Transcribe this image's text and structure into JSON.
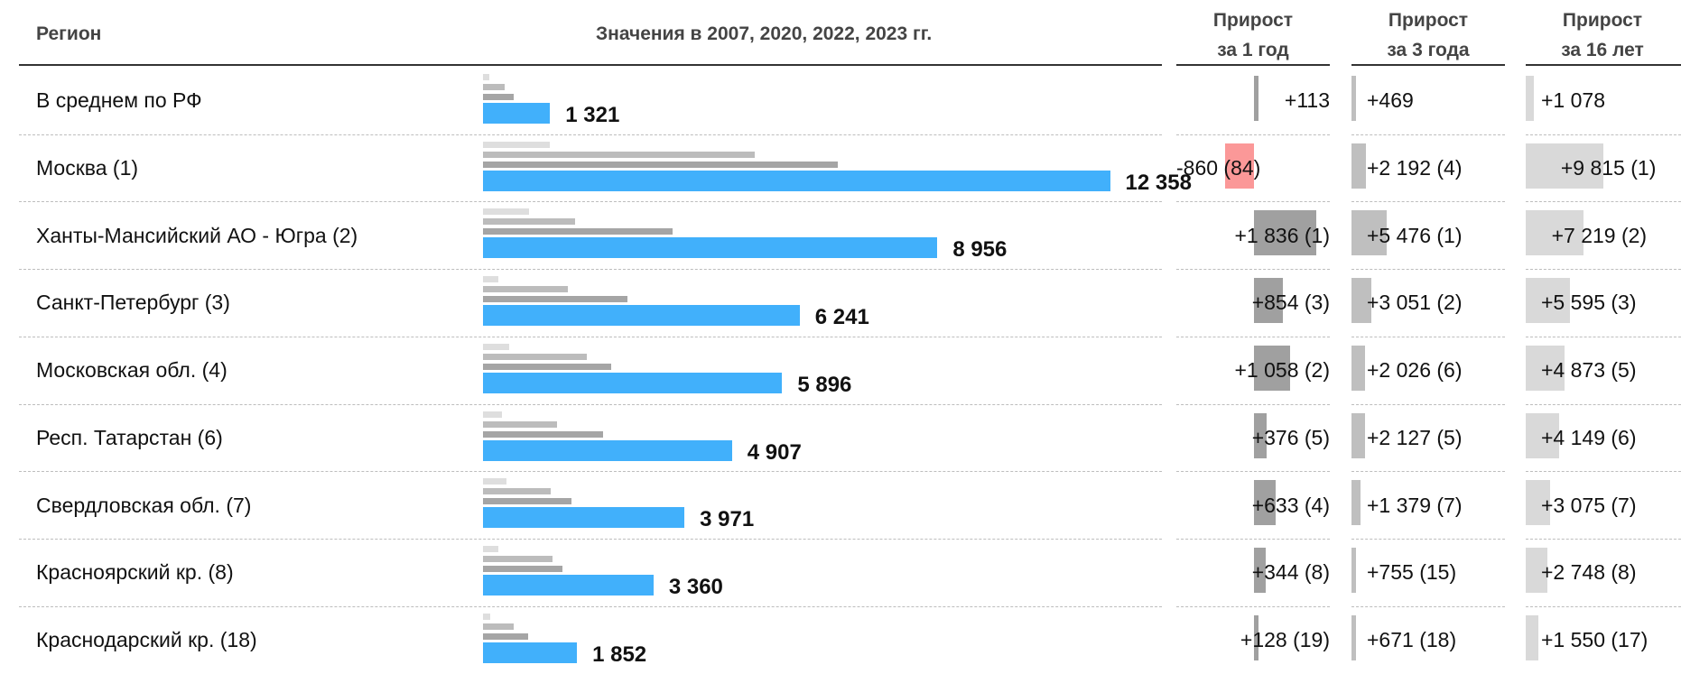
{
  "header": {
    "region": "Регион",
    "values": "Значения в 2007, 2020, 2022, 2023 гг.",
    "growth": [
      {
        "line1": "Прирост",
        "line2": "за 1 год"
      },
      {
        "line1": "Прирост",
        "line2": "за 3 года"
      },
      {
        "line1": "Прирост",
        "line2": "за 16 лет"
      }
    ]
  },
  "colors": {
    "v2007": "#dedede",
    "v2020": "#bcbcbc",
    "v2022": "#a5a5a5",
    "v2023": "#41b0fb",
    "growth1": "#a0a0a0",
    "growth3": "#bfbfbf",
    "growth16": "#d9d9d9",
    "negative": "#fb9898"
  },
  "chart_data": {
    "type": "bar",
    "series_years": [
      "2007",
      "2020",
      "2022",
      "2023"
    ],
    "rows": [
      {
        "region": "В среднем по РФ",
        "values": [
          125,
          430,
          610,
          1321
        ],
        "label": "1 321",
        "g1": {
          "value": 113,
          "label": "+113"
        },
        "g3": {
          "value": 469,
          "label": "+469"
        },
        "g16": {
          "value": 1078,
          "label": "+1 078"
        }
      },
      {
        "region": "Москва (1)",
        "values": [
          1320,
          5350,
          7000,
          12358
        ],
        "label": "12 358",
        "g1": {
          "value": -860,
          "label": "-860 (84)"
        },
        "g3": {
          "value": 2192,
          "label": "+2 192 (4)"
        },
        "g16": {
          "value": 9815,
          "label": "+9 815 (1)"
        }
      },
      {
        "region": "Ханты-Мансийский АО - Югра (2)",
        "values": [
          900,
          1820,
          3730,
          8956
        ],
        "label": "8 956",
        "g1": {
          "value": 1836,
          "label": "+1 836 (1)"
        },
        "g3": {
          "value": 5476,
          "label": "+5 476 (1)"
        },
        "g16": {
          "value": 7219,
          "label": "+7 219 (2)"
        }
      },
      {
        "region": "Санкт-Петербург (3)",
        "values": [
          300,
          1670,
          2840,
          6241
        ],
        "label": "6 241",
        "g1": {
          "value": 854,
          "label": "+854 (3)"
        },
        "g3": {
          "value": 3051,
          "label": "+3 051 (2)"
        },
        "g16": {
          "value": 5595,
          "label": "+5 595 (3)"
        }
      },
      {
        "region": "Московская обл. (4)",
        "values": [
          520,
          2040,
          2520,
          5896
        ],
        "label": "5 896",
        "g1": {
          "value": 1058,
          "label": "+1 058 (2)"
        },
        "g3": {
          "value": 2026,
          "label": "+2 026 (6)"
        },
        "g16": {
          "value": 4873,
          "label": "+4 873 (5)"
        }
      },
      {
        "region": "Респ. Татарстан (6)",
        "values": [
          380,
          1460,
          2370,
          4907
        ],
        "label": "4 907",
        "g1": {
          "value": 376,
          "label": "+376 (5)"
        },
        "g3": {
          "value": 2127,
          "label": "+2 127 (5)"
        },
        "g16": {
          "value": 4149,
          "label": "+4 149 (6)"
        }
      },
      {
        "region": "Свердловская обл. (7)",
        "values": [
          460,
          1340,
          1750,
          3971
        ],
        "label": "3 971",
        "g1": {
          "value": 633,
          "label": "+633 (4)"
        },
        "g3": {
          "value": 1379,
          "label": "+1 379 (7)"
        },
        "g16": {
          "value": 3075,
          "label": "+3 075 (7)"
        }
      },
      {
        "region": "Красноярский кр. (8)",
        "values": [
          300,
          1370,
          1570,
          3360
        ],
        "label": "3 360",
        "g1": {
          "value": 344,
          "label": "+344 (8)"
        },
        "g3": {
          "value": 755,
          "label": "+755 (15)"
        },
        "g16": {
          "value": 2748,
          "label": "+2 748 (8)"
        }
      },
      {
        "region": "Краснодарский кр. (18)",
        "values": [
          140,
          610,
          890,
          1852
        ],
        "label": "1 852",
        "g1": {
          "value": 128,
          "label": "+128 (19)"
        },
        "g3": {
          "value": 671,
          "label": "+671 (18)"
        },
        "g16": {
          "value": 1550,
          "label": "+1 550 (17)"
        }
      }
    ]
  }
}
